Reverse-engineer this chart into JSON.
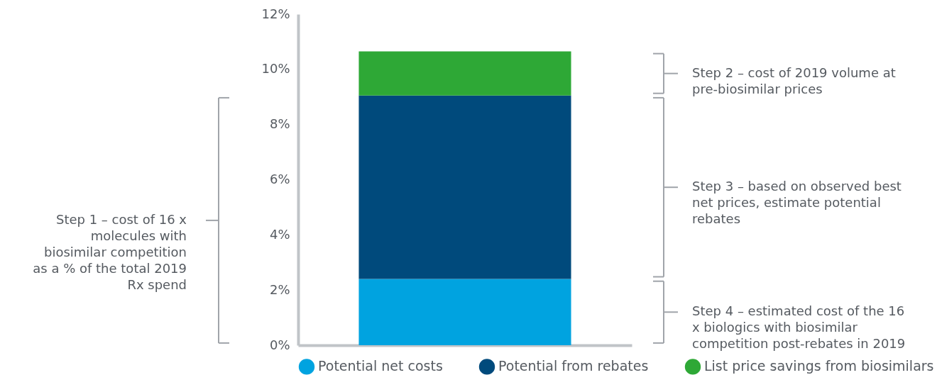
{
  "chart_data": {
    "type": "bar",
    "stacked": true,
    "categories": [
      null
    ],
    "series": [
      {
        "name": "Potential net costs",
        "color": "#00a3e0",
        "values": [
          2.4
        ]
      },
      {
        "name": "Potential from rebates",
        "color": "#004a7c",
        "values": [
          6.65
        ]
      },
      {
        "name": "List price savings from biosimilars",
        "color": "#2ea836",
        "values": [
          1.6
        ]
      }
    ],
    "ylim": [
      0,
      12
    ],
    "yticks": [
      {
        "value": 0,
        "label": "0%"
      },
      {
        "value": 2,
        "label": "2%"
      },
      {
        "value": 4,
        "label": "4%"
      },
      {
        "value": 6,
        "label": "6%"
      },
      {
        "value": 8,
        "label": "8%"
      },
      {
        "value": 10,
        "label": "10%"
      },
      {
        "value": 12,
        "label": "12%"
      }
    ],
    "grid": false,
    "legend": "bottom",
    "annotations": [
      "Step 1 – cost of 16 x molecules with biosimilar competition as a % of the total 2019 Rx spend",
      "Step 2 – cost of 2019 volume at pre-biosimilar prices",
      "Step 3 – based on observed best net prices, estimate potential rebates",
      "Step 4 – estimated cost of the 16 x biologics with biosimilar competition post-rebates in 2019"
    ]
  }
}
